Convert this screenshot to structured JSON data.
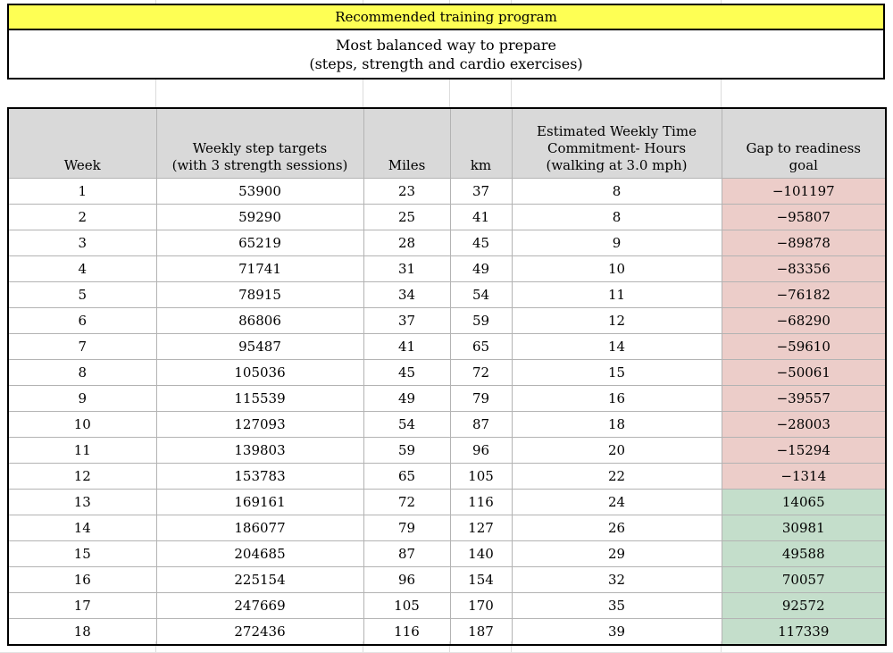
{
  "title_banner": {
    "text": "Recommended training program"
  },
  "subtitle": {
    "line1": "Most balanced way to prepare",
    "line2": "(steps, strength and cardio exercises)"
  },
  "table": {
    "column_keys": [
      "week",
      "steps",
      "miles",
      "km",
      "hours",
      "gap"
    ],
    "header": {
      "week": "Week",
      "steps": "Weekly step targets\n(with 3 strength sessions)",
      "miles": "Miles",
      "km": "km",
      "hours": "Estimated Weekly Time\nCommitment- Hours\n(walking at 3.0 mph)",
      "gap": "Gap to readiness\ngoal"
    },
    "rows": [
      {
        "week": 1,
        "steps": 53900,
        "miles": 23,
        "km": 37,
        "hours": 8,
        "gap": -101197
      },
      {
        "week": 2,
        "steps": 59290,
        "miles": 25,
        "km": 41,
        "hours": 8,
        "gap": -95807
      },
      {
        "week": 3,
        "steps": 65219,
        "miles": 28,
        "km": 45,
        "hours": 9,
        "gap": -89878
      },
      {
        "week": 4,
        "steps": 71741,
        "miles": 31,
        "km": 49,
        "hours": 10,
        "gap": -83356
      },
      {
        "week": 5,
        "steps": 78915,
        "miles": 34,
        "km": 54,
        "hours": 11,
        "gap": -76182
      },
      {
        "week": 6,
        "steps": 86806,
        "miles": 37,
        "km": 59,
        "hours": 12,
        "gap": -68290
      },
      {
        "week": 7,
        "steps": 95487,
        "miles": 41,
        "km": 65,
        "hours": 14,
        "gap": -59610
      },
      {
        "week": 8,
        "steps": 105036,
        "miles": 45,
        "km": 72,
        "hours": 15,
        "gap": -50061
      },
      {
        "week": 9,
        "steps": 115539,
        "miles": 49,
        "km": 79,
        "hours": 16,
        "gap": -39557
      },
      {
        "week": 10,
        "steps": 127093,
        "miles": 54,
        "km": 87,
        "hours": 18,
        "gap": -28003
      },
      {
        "week": 11,
        "steps": 139803,
        "miles": 59,
        "km": 96,
        "hours": 20,
        "gap": -15294
      },
      {
        "week": 12,
        "steps": 153783,
        "miles": 65,
        "km": 105,
        "hours": 22,
        "gap": -1314
      },
      {
        "week": 13,
        "steps": 169161,
        "miles": 72,
        "km": 116,
        "hours": 24,
        "gap": 14065
      },
      {
        "week": 14,
        "steps": 186077,
        "miles": 79,
        "km": 127,
        "hours": 26,
        "gap": 30981
      },
      {
        "week": 15,
        "steps": 204685,
        "miles": 87,
        "km": 140,
        "hours": 29,
        "gap": 49588
      },
      {
        "week": 16,
        "steps": 225154,
        "miles": 96,
        "km": 154,
        "hours": 32,
        "gap": 70057
      },
      {
        "week": 17,
        "steps": 247669,
        "miles": 105,
        "km": 170,
        "hours": 35,
        "gap": 92572
      },
      {
        "week": 18,
        "steps": 272436,
        "miles": 116,
        "km": 187,
        "hours": 39,
        "gap": 117339
      }
    ]
  },
  "colors": {
    "banner_yellow": "#feff54",
    "header_gray": "#d9d9d9",
    "negative_red": "#eccdc9",
    "positive_green": "#c4decb",
    "grid_line": "#b3b3b3",
    "border_black": "#000000"
  }
}
